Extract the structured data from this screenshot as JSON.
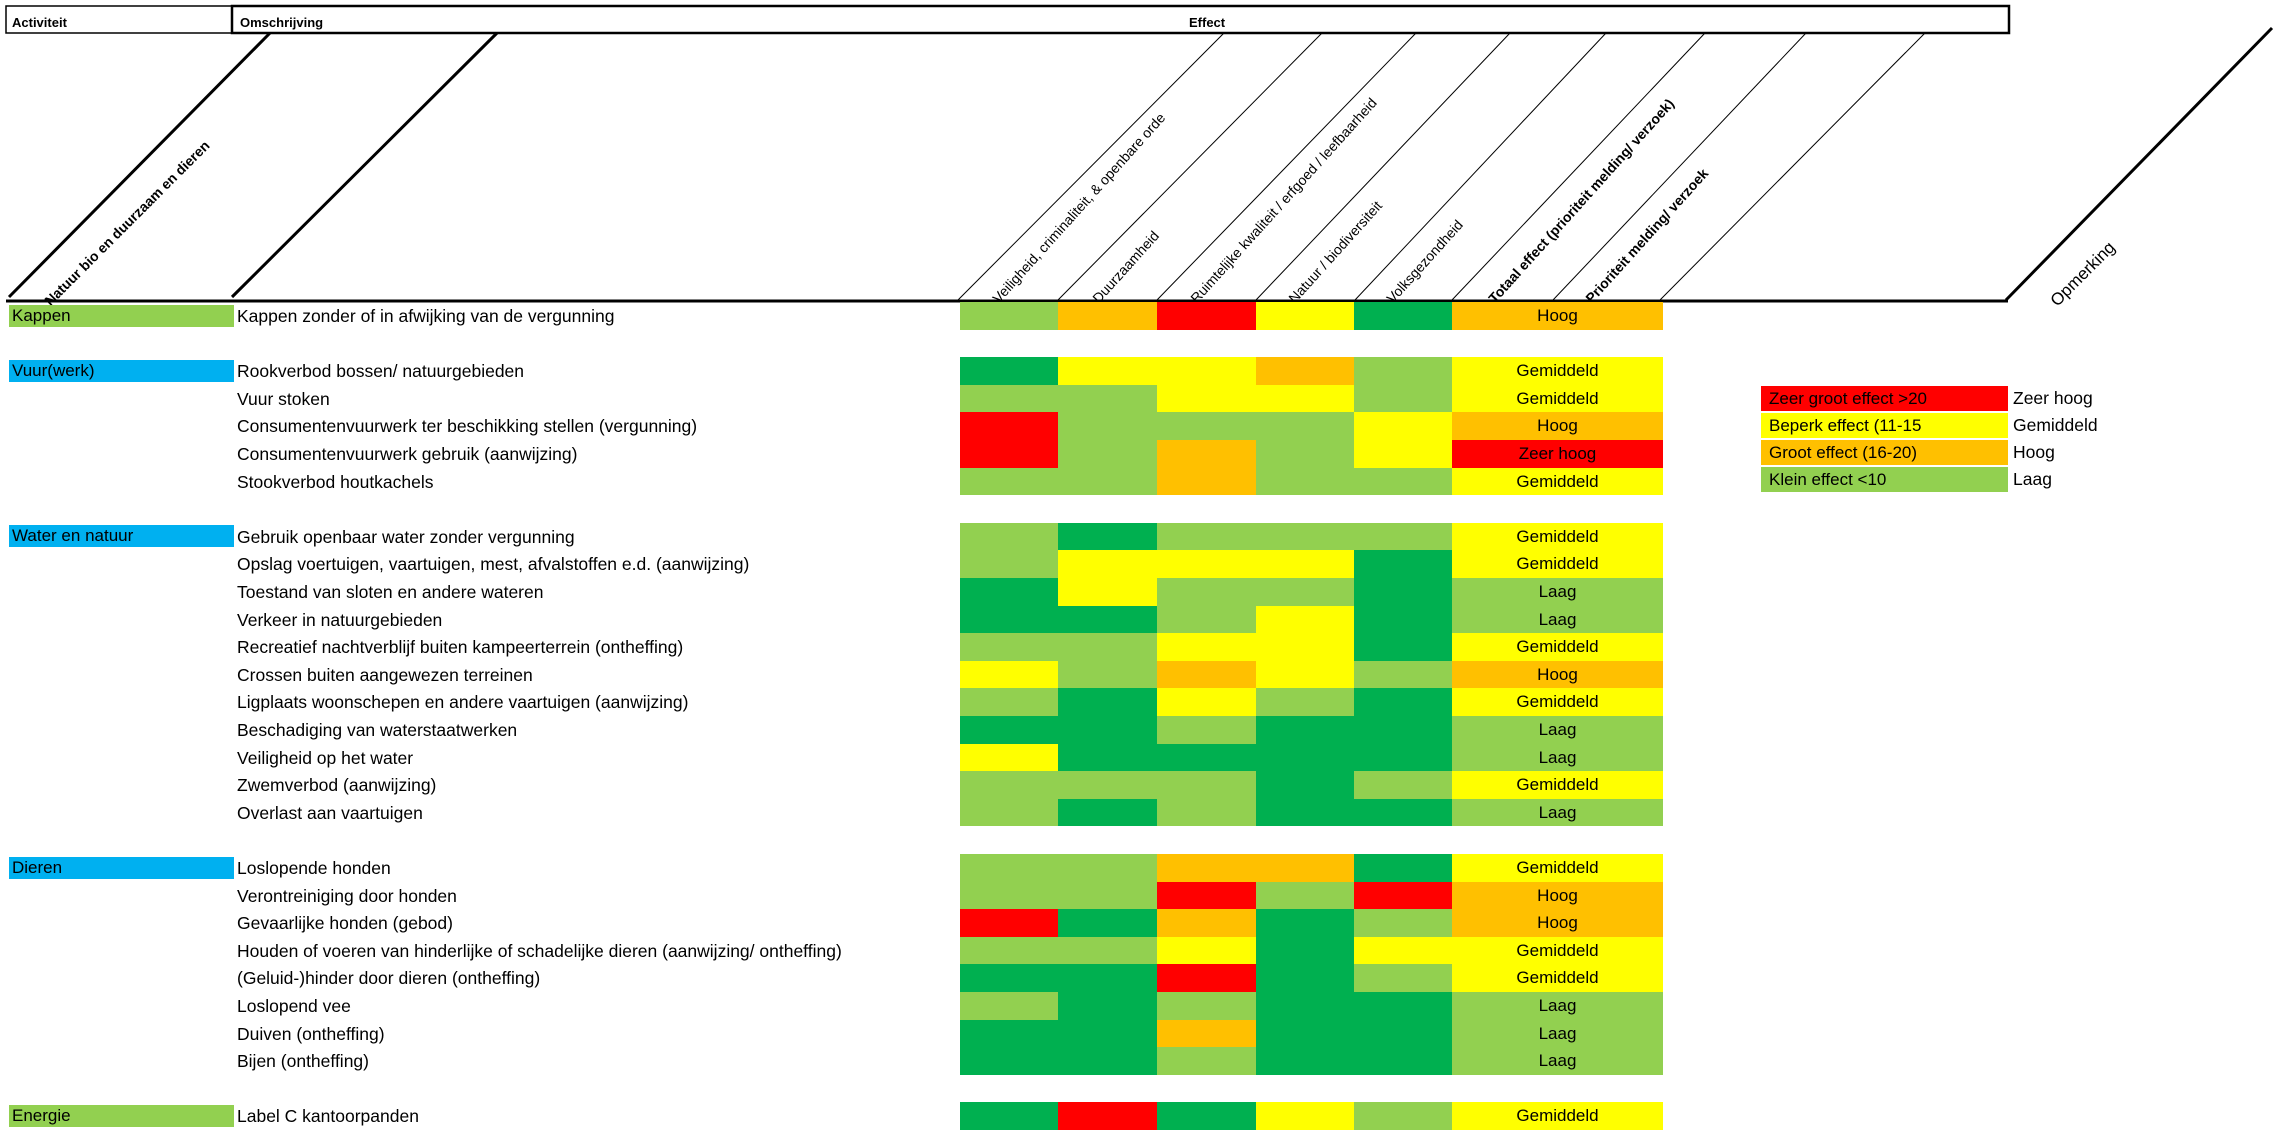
{
  "colors": {
    "red": "#ff0000",
    "orange": "#ffc000",
    "yellow": "#ffff00",
    "lightgreen": "#92d050",
    "green": "#00b050",
    "blue": "#00b0f0"
  },
  "header": {
    "activiteit": "Activiteit",
    "omschrijving": "Omschrijving",
    "effect": "Effect",
    "natuur": "Natuur bio en duurzaam en dieren",
    "opmerking": "Opmerking"
  },
  "columns": [
    "Veiligheid, criminaliteit, & openbare orde",
    "Duurzaamheid",
    "Ruimtelijke kwaliteit / erfgoed / leefbaarheid",
    "Natuur / biodiversiteit",
    "Volksgezondheid",
    "Totaal effect (prioriteit melding/ verzoek)",
    "Prioriteit melding/ verzoek"
  ],
  "categories": [
    {
      "label": "Kappen",
      "color": "lightgreen",
      "row": 0
    },
    {
      "label": "Vuur(werk)",
      "color": "blue",
      "row": 2
    },
    {
      "label": "Water en natuur",
      "color": "blue",
      "row": 8
    },
    {
      "label": "Dieren",
      "color": "blue",
      "row": 20
    },
    {
      "label": "Energie",
      "color": "lightgreen",
      "row": 29
    }
  ],
  "rows": [
    {
      "desc": "Kappen zonder of in afwijking van de vergunning",
      "cells": [
        "lightgreen",
        "orange",
        "red",
        "yellow",
        "green"
      ],
      "effect": "Hoog",
      "effect_color": "orange"
    },
    null,
    {
      "desc": "Rookverbod bossen/ natuurgebieden",
      "cells": [
        "green",
        "yellow",
        "yellow",
        "orange",
        "lightgreen"
      ],
      "effect": "Gemiddeld",
      "effect_color": "yellow"
    },
    {
      "desc": "Vuur stoken",
      "cells": [
        "lightgreen",
        "lightgreen",
        "yellow",
        "yellow",
        "lightgreen"
      ],
      "effect": "Gemiddeld",
      "effect_color": "yellow"
    },
    {
      "desc": "Consumentenvuurwerk ter beschikking stellen (vergunning)",
      "cells": [
        "red",
        "lightgreen",
        "lightgreen",
        "lightgreen",
        "yellow"
      ],
      "effect": "Hoog",
      "effect_color": "orange"
    },
    {
      "desc": "Consumentenvuurwerk gebruik (aanwijzing)",
      "cells": [
        "red",
        "lightgreen",
        "orange",
        "lightgreen",
        "yellow"
      ],
      "effect": "Zeer hoog",
      "effect_color": "red"
    },
    {
      "desc": "Stookverbod  houtkachels",
      "cells": [
        "lightgreen",
        "lightgreen",
        "orange",
        "lightgreen",
        "lightgreen"
      ],
      "effect": "Gemiddeld",
      "effect_color": "yellow"
    },
    null,
    {
      "desc": "Gebruik openbaar water zonder vergunning",
      "cells": [
        "lightgreen",
        "green",
        "lightgreen",
        "lightgreen",
        "lightgreen"
      ],
      "effect": "Gemiddeld",
      "effect_color": "yellow"
    },
    {
      "desc": "Opslag voertuigen, vaartuigen, mest, afvalstoffen e.d. (aanwijzing)",
      "cells": [
        "lightgreen",
        "yellow",
        "yellow",
        "yellow",
        "green"
      ],
      "effect": "Gemiddeld",
      "effect_color": "yellow"
    },
    {
      "desc": "Toestand van sloten en andere wateren",
      "cells": [
        "green",
        "yellow",
        "lightgreen",
        "lightgreen",
        "green"
      ],
      "effect": "Laag",
      "effect_color": "lightgreen"
    },
    {
      "desc": "Verkeer in natuurgebieden",
      "cells": [
        "green",
        "green",
        "lightgreen",
        "yellow",
        "green"
      ],
      "effect": "Laag",
      "effect_color": "lightgreen"
    },
    {
      "desc": "Recreatief nachtverblijf buiten kampeerterrein (ontheffing)",
      "cells": [
        "lightgreen",
        "lightgreen",
        "yellow",
        "yellow",
        "green"
      ],
      "effect": "Gemiddeld",
      "effect_color": "yellow"
    },
    {
      "desc": "Crossen buiten aangewezen terreinen",
      "cells": [
        "yellow",
        "lightgreen",
        "orange",
        "yellow",
        "lightgreen"
      ],
      "effect": "Hoog",
      "effect_color": "orange"
    },
    {
      "desc": "Ligplaats woonschepen en andere vaartuigen (aanwijzing)",
      "cells": [
        "lightgreen",
        "green",
        "yellow",
        "lightgreen",
        "green"
      ],
      "effect": "Gemiddeld",
      "effect_color": "yellow"
    },
    {
      "desc": "Beschadiging van waterstaatwerken",
      "cells": [
        "green",
        "green",
        "lightgreen",
        "green",
        "green"
      ],
      "effect": "Laag",
      "effect_color": "lightgreen"
    },
    {
      "desc": "Veiligheid op het water",
      "cells": [
        "yellow",
        "green",
        "green",
        "green",
        "green"
      ],
      "effect": "Laag",
      "effect_color": "lightgreen"
    },
    {
      "desc": "Zwemverbod (aanwijzing)",
      "cells": [
        "lightgreen",
        "lightgreen",
        "lightgreen",
        "green",
        "lightgreen"
      ],
      "effect": "Gemiddeld",
      "effect_color": "yellow"
    },
    {
      "desc": "Overlast aan vaartuigen",
      "cells": [
        "lightgreen",
        "green",
        "lightgreen",
        "green",
        "green"
      ],
      "effect": "Laag",
      "effect_color": "lightgreen"
    },
    null,
    {
      "desc": "Loslopende honden",
      "cells": [
        "lightgreen",
        "lightgreen",
        "orange",
        "orange",
        "green"
      ],
      "effect": "Gemiddeld",
      "effect_color": "yellow"
    },
    {
      "desc": "Verontreiniging door honden",
      "cells": [
        "lightgreen",
        "lightgreen",
        "red",
        "lightgreen",
        "red"
      ],
      "effect": "Hoog",
      "effect_color": "orange"
    },
    {
      "desc": "Gevaarlijke honden (gebod)",
      "cells": [
        "red",
        "green",
        "orange",
        "green",
        "lightgreen"
      ],
      "effect": "Hoog",
      "effect_color": "orange"
    },
    {
      "desc": "Houden of voeren van hinderlijke of schadelijke dieren (aanwijzing/ ontheffing)",
      "cells": [
        "lightgreen",
        "lightgreen",
        "yellow",
        "green",
        "yellow"
      ],
      "effect": "Gemiddeld",
      "effect_color": "yellow"
    },
    {
      "desc": "(Geluid-)hinder door dieren (ontheffing)",
      "cells": [
        "green",
        "green",
        "red",
        "green",
        "lightgreen"
      ],
      "effect": "Gemiddeld",
      "effect_color": "yellow"
    },
    {
      "desc": "Loslopend vee",
      "cells": [
        "lightgreen",
        "green",
        "lightgreen",
        "green",
        "green"
      ],
      "effect": "Laag",
      "effect_color": "lightgreen"
    },
    {
      "desc": "Duiven (ontheffing)",
      "cells": [
        "green",
        "green",
        "orange",
        "green",
        "green"
      ],
      "effect": "Laag",
      "effect_color": "lightgreen"
    },
    {
      "desc": "Bijen (ontheffing)",
      "cells": [
        "green",
        "green",
        "lightgreen",
        "green",
        "green"
      ],
      "effect": "Laag",
      "effect_color": "lightgreen"
    },
    null,
    {
      "desc": "Label C kantoorpanden",
      "cells": [
        "green",
        "red",
        "green",
        "yellow",
        "lightgreen"
      ],
      "effect": "Gemiddeld",
      "effect_color": "yellow"
    }
  ],
  "legend": [
    {
      "box": "Zeer groot effect >20",
      "color": "red",
      "label": "Zeer hoog"
    },
    {
      "box": "Beperk effect (11-15",
      "color": "yellow",
      "label": "Gemiddeld"
    },
    {
      "box": "Groot effect (16-20)",
      "color": "orange",
      "label": "Hoog"
    },
    {
      "box": "Klein effect <10",
      "color": "lightgreen",
      "label": "Laag"
    }
  ]
}
